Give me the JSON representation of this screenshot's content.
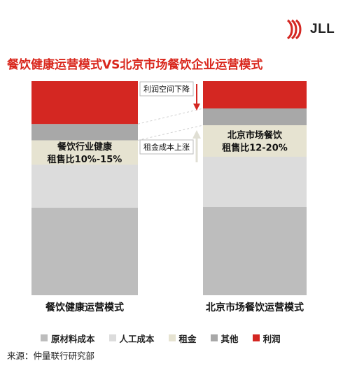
{
  "logo": {
    "text": "JLL"
  },
  "title": "餐饮健康运营模式VS北京市场餐饮企业运营模式",
  "chart_data": {
    "type": "bar",
    "stacked": true,
    "percent_stacked": true,
    "categories": [
      "餐饮健康运营模式",
      "北京市场餐饮运营模式"
    ],
    "series": [
      {
        "name": "原材料成本",
        "color": "#bdbdbd",
        "values": [
          43,
          42
        ]
      },
      {
        "name": "人工成本",
        "color": "#dcdcdc",
        "values": [
          21,
          24
        ]
      },
      {
        "name": "租金",
        "color": "#e6e3d1",
        "values": [
          12,
          15
        ]
      },
      {
        "name": "其他",
        "color": "#a8a8a8",
        "values": [
          8,
          8
        ]
      },
      {
        "name": "利润",
        "color": "#d42722",
        "values": [
          21,
          13
        ]
      }
    ],
    "band_labels": [
      {
        "lines": [
          "餐饮行业健康",
          "租售比10%-15%"
        ]
      },
      {
        "lines": [
          "北京市场餐饮",
          "租售比12-20%"
        ]
      }
    ],
    "annotations": [
      "利润空间下降",
      "租金成本上涨"
    ]
  },
  "source": "来源：仲量联行研究部"
}
